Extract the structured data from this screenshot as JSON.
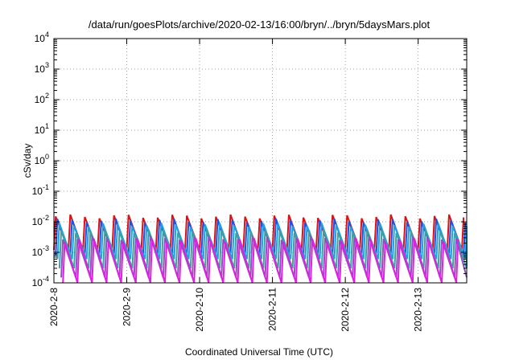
{
  "chart_data": {
    "type": "line",
    "title": "/data/run/goesPlots/archive/2020-02-13/16:00/bryn/../bryn/5daysMars.plot",
    "xlabel": "Coordinated Universal Time (UTC)",
    "ylabel": "cSv/day",
    "y_scale": "log",
    "ylim": [
      0.0001,
      10000
    ],
    "xlim": [
      "2020-02-08T00:00",
      "2020-02-13T16:00"
    ],
    "grid": true,
    "x_ticks": [
      "2020-2-8",
      "2020-2-9",
      "2020-2-10",
      "2020-2-11",
      "2020-2-12",
      "2020-2-13"
    ],
    "y_ticks": [
      {
        "base": "10",
        "exp": "-4"
      },
      {
        "base": "10",
        "exp": "-3"
      },
      {
        "base": "10",
        "exp": "-2"
      },
      {
        "base": "10",
        "exp": "-1"
      },
      {
        "base": "10",
        "exp": "0"
      },
      {
        "base": "10",
        "exp": "1"
      },
      {
        "base": "10",
        "exp": "2"
      },
      {
        "base": "10",
        "exp": "3"
      },
      {
        "base": "10",
        "exp": "4"
      }
    ],
    "series": [
      {
        "color": "#e01010",
        "peak": 0.015,
        "trough": 0.0012,
        "phase": 0.0
      },
      {
        "color": "#2050e0",
        "peak": 0.011,
        "trough": 0.0008,
        "phase": 0.12
      },
      {
        "color": "#20a0e0",
        "peak": 0.008,
        "trough": 0.0006,
        "phase": 0.25
      },
      {
        "color": "#40a0a0",
        "peak": 0.005,
        "trough": 0.0003,
        "phase": 0.38
      },
      {
        "color": "#9050c0",
        "peak": 0.003,
        "trough": 0.00015,
        "phase": 0.5
      },
      {
        "color": "#e020e0",
        "peak": 0.0025,
        "trough": 8e-05,
        "phase": 0.62
      }
    ],
    "period_days": 0.2,
    "colors": {
      "frame": "#000000",
      "grid": "#a0a0a0"
    }
  }
}
